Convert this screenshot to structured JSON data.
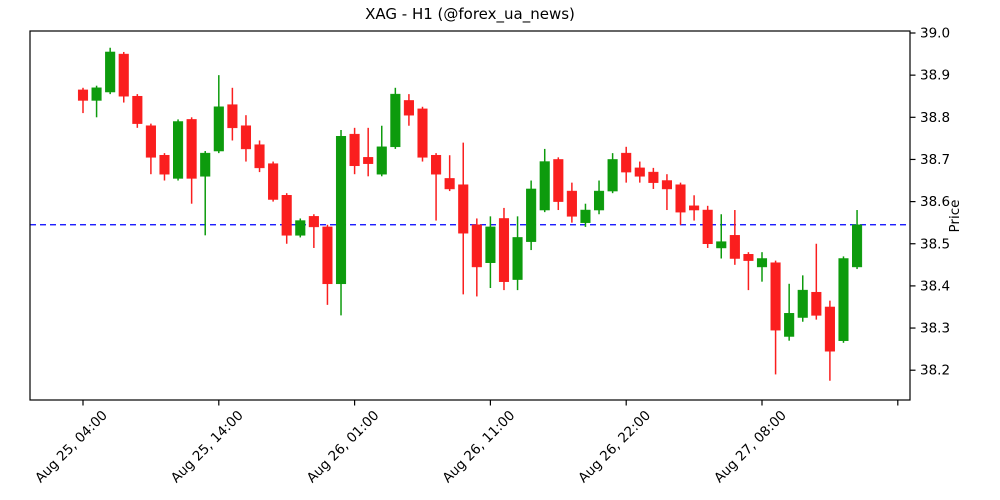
{
  "title": "XAG - H1 (@forex_ua_news)",
  "axes": {
    "y_label": "Price",
    "y_ticks": [
      39.0,
      38.9,
      38.8,
      38.7,
      38.6,
      38.5,
      38.4,
      38.3,
      38.2
    ],
    "y_tick_format_decimals": 1,
    "x_ticks": [
      {
        "index": 0,
        "label": "Aug 25, 04:00"
      },
      {
        "index": 10,
        "label": "Aug 25, 14:00"
      },
      {
        "index": 20,
        "label": "Aug 26, 01:00"
      },
      {
        "index": 30,
        "label": "Aug 26, 11:00"
      },
      {
        "index": 40,
        "label": "Aug 26, 22:00"
      },
      {
        "index": 50,
        "label": "Aug 27, 08:00"
      },
      {
        "index": 60,
        "label": ""
      }
    ]
  },
  "chart_data": {
    "type": "candlestick",
    "title": "XAG - H1 (@forex_ua_news)",
    "symbol": "XAG",
    "timeframe": "H1",
    "source_handle": "@forex_ua_news",
    "ylabel": "Price",
    "ylim": [
      38.13,
      39.0
    ],
    "grid": false,
    "up_color": "#0d9b0d",
    "down_color": "#fa1e1e",
    "reference_line": {
      "value": 38.545,
      "color": "#0000ff",
      "style": "dashed"
    },
    "ohlc": [
      [
        38.865,
        38.87,
        38.81,
        38.84
      ],
      [
        38.84,
        38.875,
        38.8,
        38.87
      ],
      [
        38.86,
        38.965,
        38.855,
        38.955
      ],
      [
        38.95,
        38.955,
        38.835,
        38.85
      ],
      [
        38.85,
        38.855,
        38.775,
        38.785
      ],
      [
        38.78,
        38.785,
        38.665,
        38.705
      ],
      [
        38.71,
        38.715,
        38.65,
        38.665
      ],
      [
        38.655,
        38.795,
        38.65,
        38.79
      ],
      [
        38.795,
        38.8,
        38.595,
        38.655
      ],
      [
        38.66,
        38.72,
        38.52,
        38.715
      ],
      [
        38.72,
        38.9,
        38.715,
        38.825
      ],
      [
        38.83,
        38.87,
        38.745,
        38.775
      ],
      [
        38.78,
        38.805,
        38.695,
        38.725
      ],
      [
        38.735,
        38.745,
        38.67,
        38.68
      ],
      [
        38.69,
        38.695,
        38.6,
        38.605
      ],
      [
        38.615,
        38.62,
        38.5,
        38.52
      ],
      [
        38.52,
        38.56,
        38.515,
        38.555
      ],
      [
        38.565,
        38.57,
        38.49,
        38.54
      ],
      [
        38.54,
        38.545,
        38.355,
        38.405
      ],
      [
        38.405,
        38.77,
        38.33,
        38.755
      ],
      [
        38.76,
        38.775,
        38.665,
        38.685
      ],
      [
        38.705,
        38.775,
        38.66,
        38.69
      ],
      [
        38.665,
        38.78,
        38.66,
        38.73
      ],
      [
        38.73,
        38.87,
        38.725,
        38.855
      ],
      [
        38.84,
        38.855,
        38.78,
        38.805
      ],
      [
        38.82,
        38.825,
        38.695,
        38.705
      ],
      [
        38.71,
        38.715,
        38.555,
        38.665
      ],
      [
        38.655,
        38.71,
        38.625,
        38.63
      ],
      [
        38.64,
        38.74,
        38.38,
        38.525
      ],
      [
        38.545,
        38.56,
        38.375,
        38.445
      ],
      [
        38.455,
        38.565,
        38.395,
        38.54
      ],
      [
        38.56,
        38.585,
        38.39,
        38.41
      ],
      [
        38.415,
        38.565,
        38.39,
        38.515
      ],
      [
        38.505,
        38.65,
        38.485,
        38.63
      ],
      [
        38.58,
        38.725,
        38.575,
        38.695
      ],
      [
        38.7,
        38.705,
        38.58,
        38.6
      ],
      [
        38.625,
        38.645,
        38.55,
        38.565
      ],
      [
        38.55,
        38.595,
        38.54,
        38.58
      ],
      [
        38.58,
        38.65,
        38.57,
        38.625
      ],
      [
        38.625,
        38.715,
        38.62,
        38.7
      ],
      [
        38.715,
        38.73,
        38.645,
        38.67
      ],
      [
        38.68,
        38.695,
        38.645,
        38.66
      ],
      [
        38.67,
        38.68,
        38.63,
        38.645
      ],
      [
        38.65,
        38.665,
        38.58,
        38.63
      ],
      [
        38.64,
        38.645,
        38.545,
        38.575
      ],
      [
        38.59,
        38.615,
        38.555,
        38.58
      ],
      [
        38.58,
        38.59,
        38.49,
        38.5
      ],
      [
        38.49,
        38.57,
        38.465,
        38.505
      ],
      [
        38.52,
        38.58,
        38.45,
        38.465
      ],
      [
        38.475,
        38.48,
        38.39,
        38.46
      ],
      [
        38.445,
        38.48,
        38.41,
        38.465
      ],
      [
        38.455,
        38.46,
        38.19,
        38.295
      ],
      [
        38.28,
        38.405,
        38.27,
        38.335
      ],
      [
        38.325,
        38.425,
        38.315,
        38.39
      ],
      [
        38.385,
        38.5,
        38.32,
        38.33
      ],
      [
        38.35,
        38.365,
        38.175,
        38.245
      ],
      [
        38.27,
        38.47,
        38.265,
        38.465
      ],
      [
        38.445,
        38.58,
        38.44,
        38.545
      ]
    ]
  }
}
